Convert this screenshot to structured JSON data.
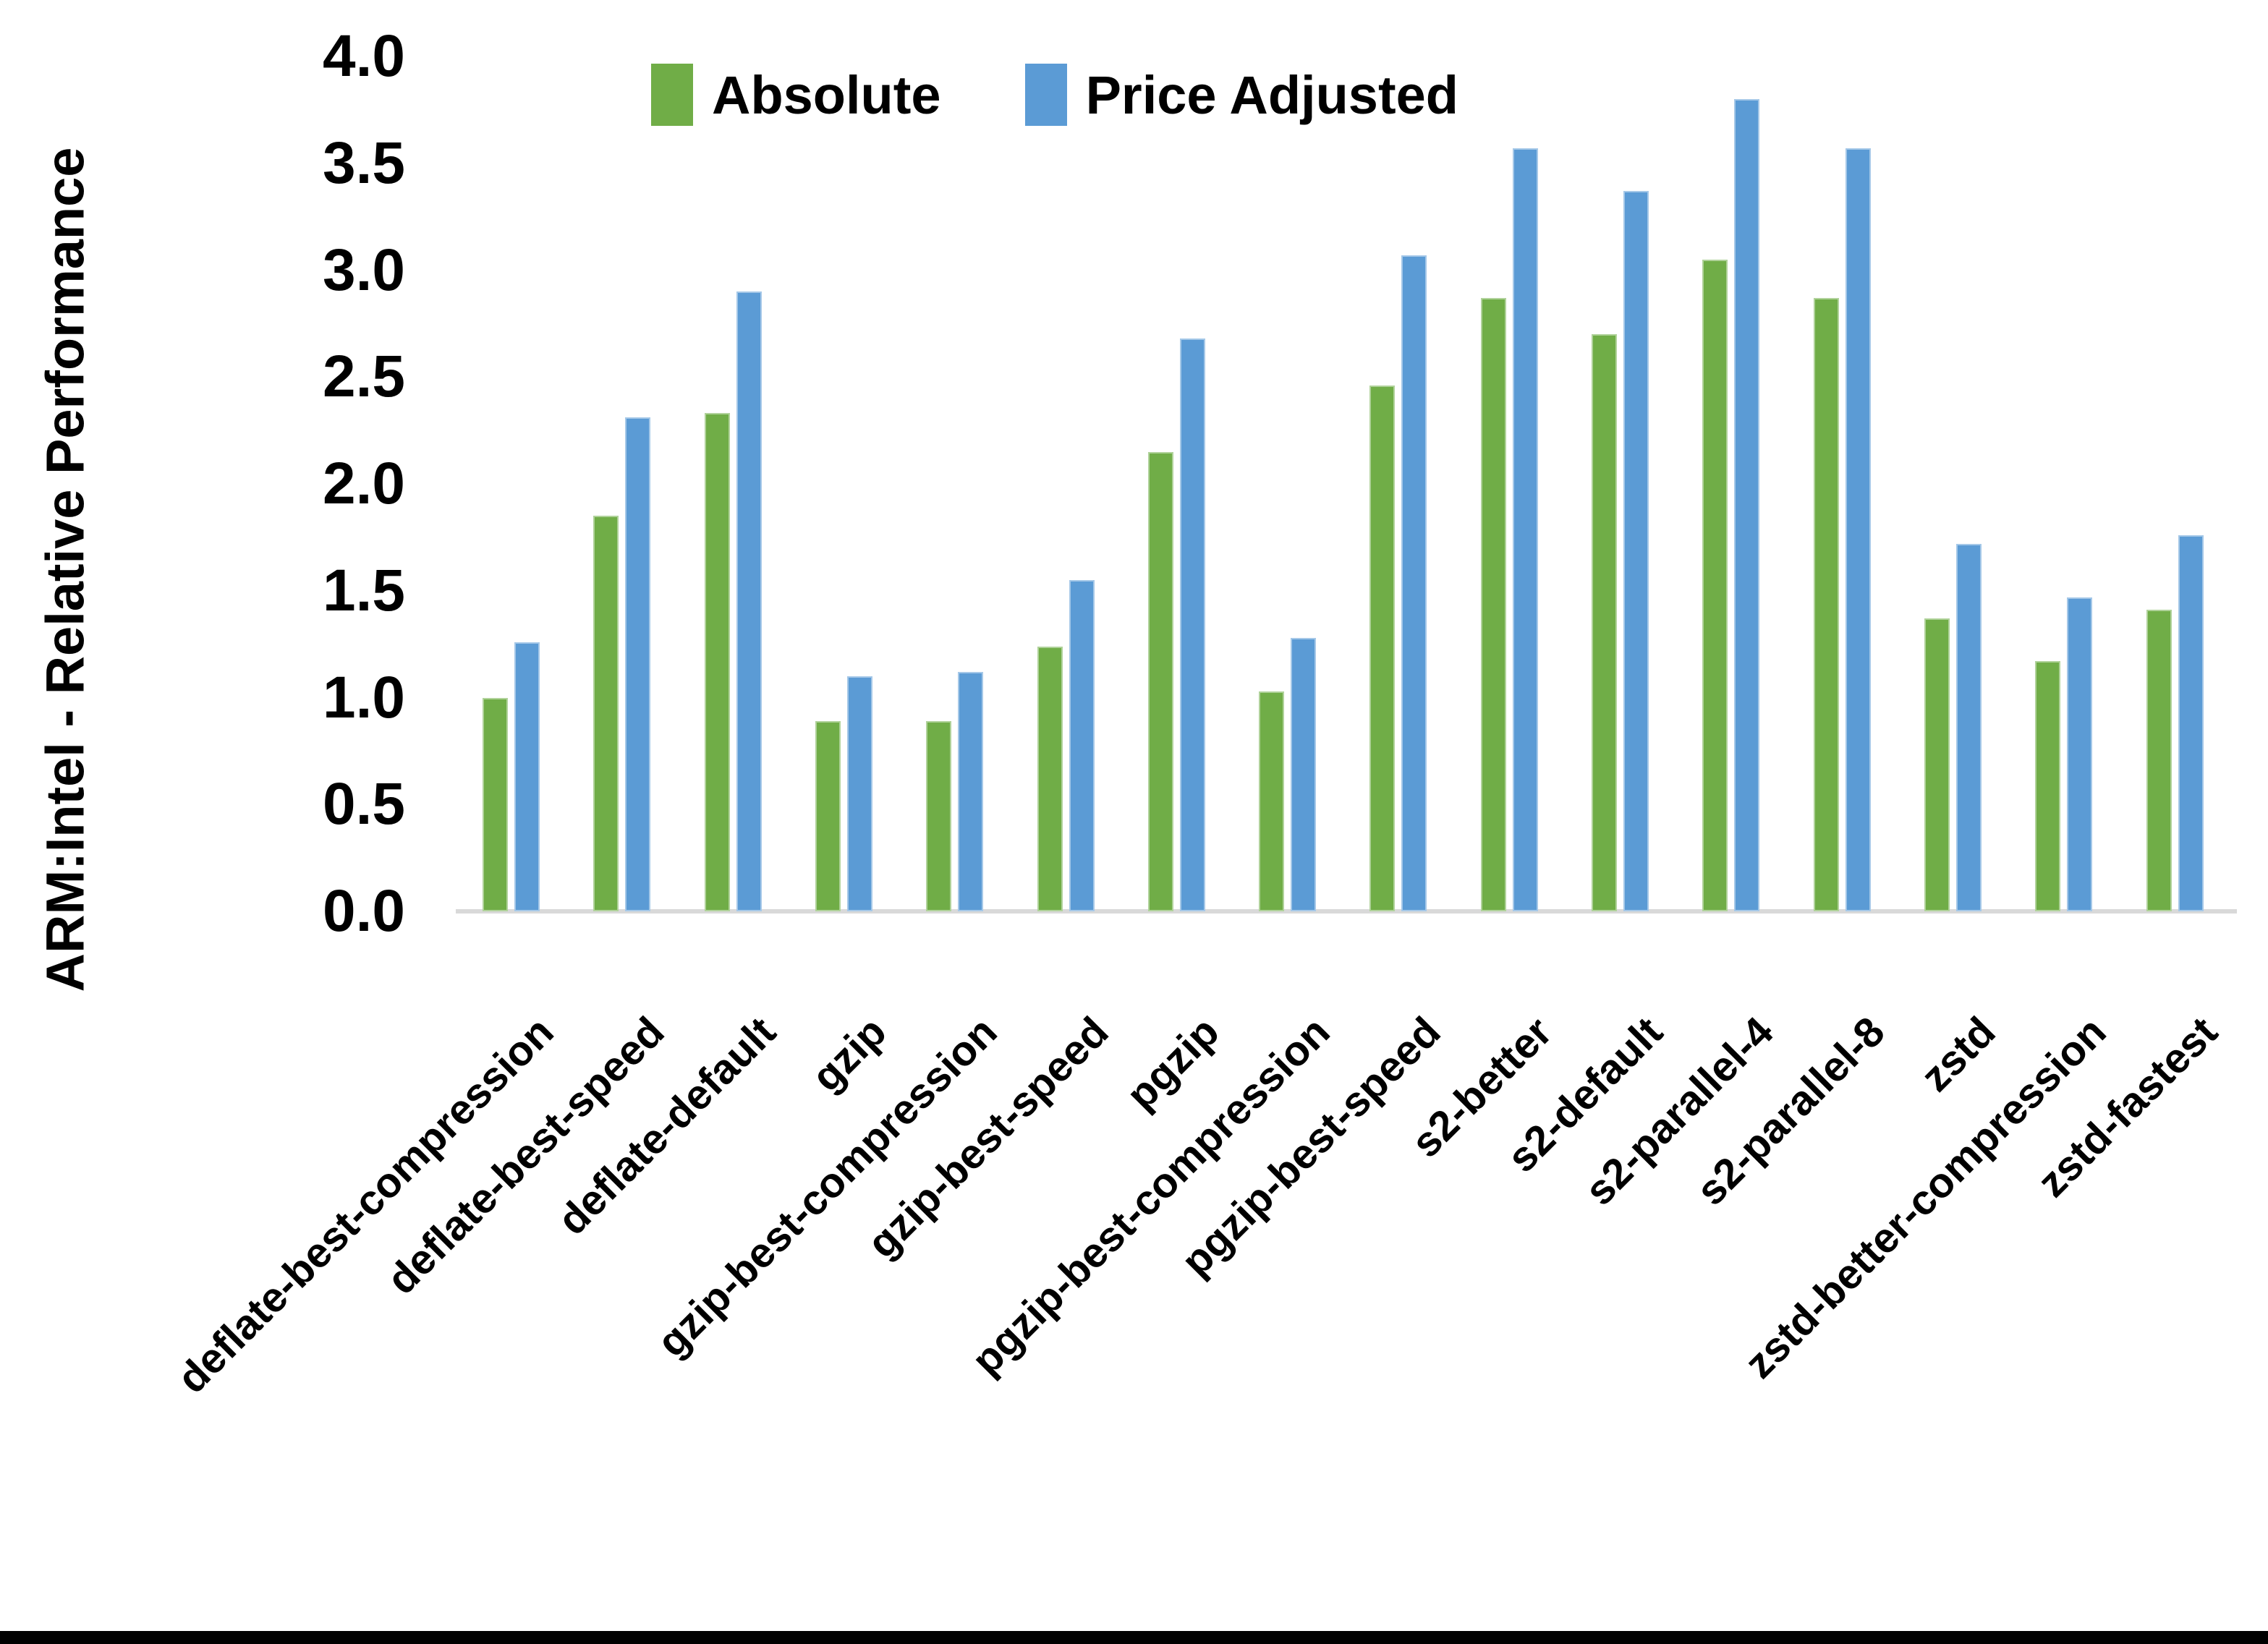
{
  "chart_data": {
    "type": "bar",
    "title": "",
    "xlabel": "",
    "ylabel": "ARM:Intel - Relative Performance",
    "ylim": [
      0.0,
      4.0
    ],
    "ytick_step": 0.5,
    "ytick_labels": [
      "0.0",
      "0.5",
      "1.0",
      "1.5",
      "2.0",
      "2.5",
      "3.0",
      "3.5",
      "4.0"
    ],
    "grid": false,
    "legend_position": "top-center",
    "categories": [
      "deflate-best-compression",
      "deflate-best-speed",
      "deflate-default",
      "gzip",
      "gzip-best-compression",
      "gzip-best-speed",
      "pgzip",
      "pgzip-best-compression",
      "pgzip-best-speed",
      "s2-better",
      "s2-default",
      "s2-parallel-4",
      "s2-parallel-8",
      "zstd",
      "zstd-better-compression",
      "zstd-fastest"
    ],
    "series": [
      {
        "name": "Absolute",
        "color": "#70AD47",
        "values": [
          1.0,
          1.85,
          2.33,
          0.89,
          0.89,
          1.24,
          2.15,
          1.03,
          2.46,
          2.87,
          2.7,
          3.05,
          2.87,
          1.37,
          1.17,
          1.41
        ]
      },
      {
        "name": "Price Adjusted",
        "color": "#5B9BD5",
        "values": [
          1.26,
          2.31,
          2.9,
          1.1,
          1.12,
          1.55,
          2.68,
          1.28,
          3.07,
          3.57,
          3.37,
          3.8,
          3.57,
          1.72,
          1.47,
          1.76
        ]
      }
    ]
  },
  "colors": {
    "background": "#FFFFFF",
    "axis_line": "#D9D9D9",
    "text": "#000000",
    "bottom_strip": "#000000"
  }
}
